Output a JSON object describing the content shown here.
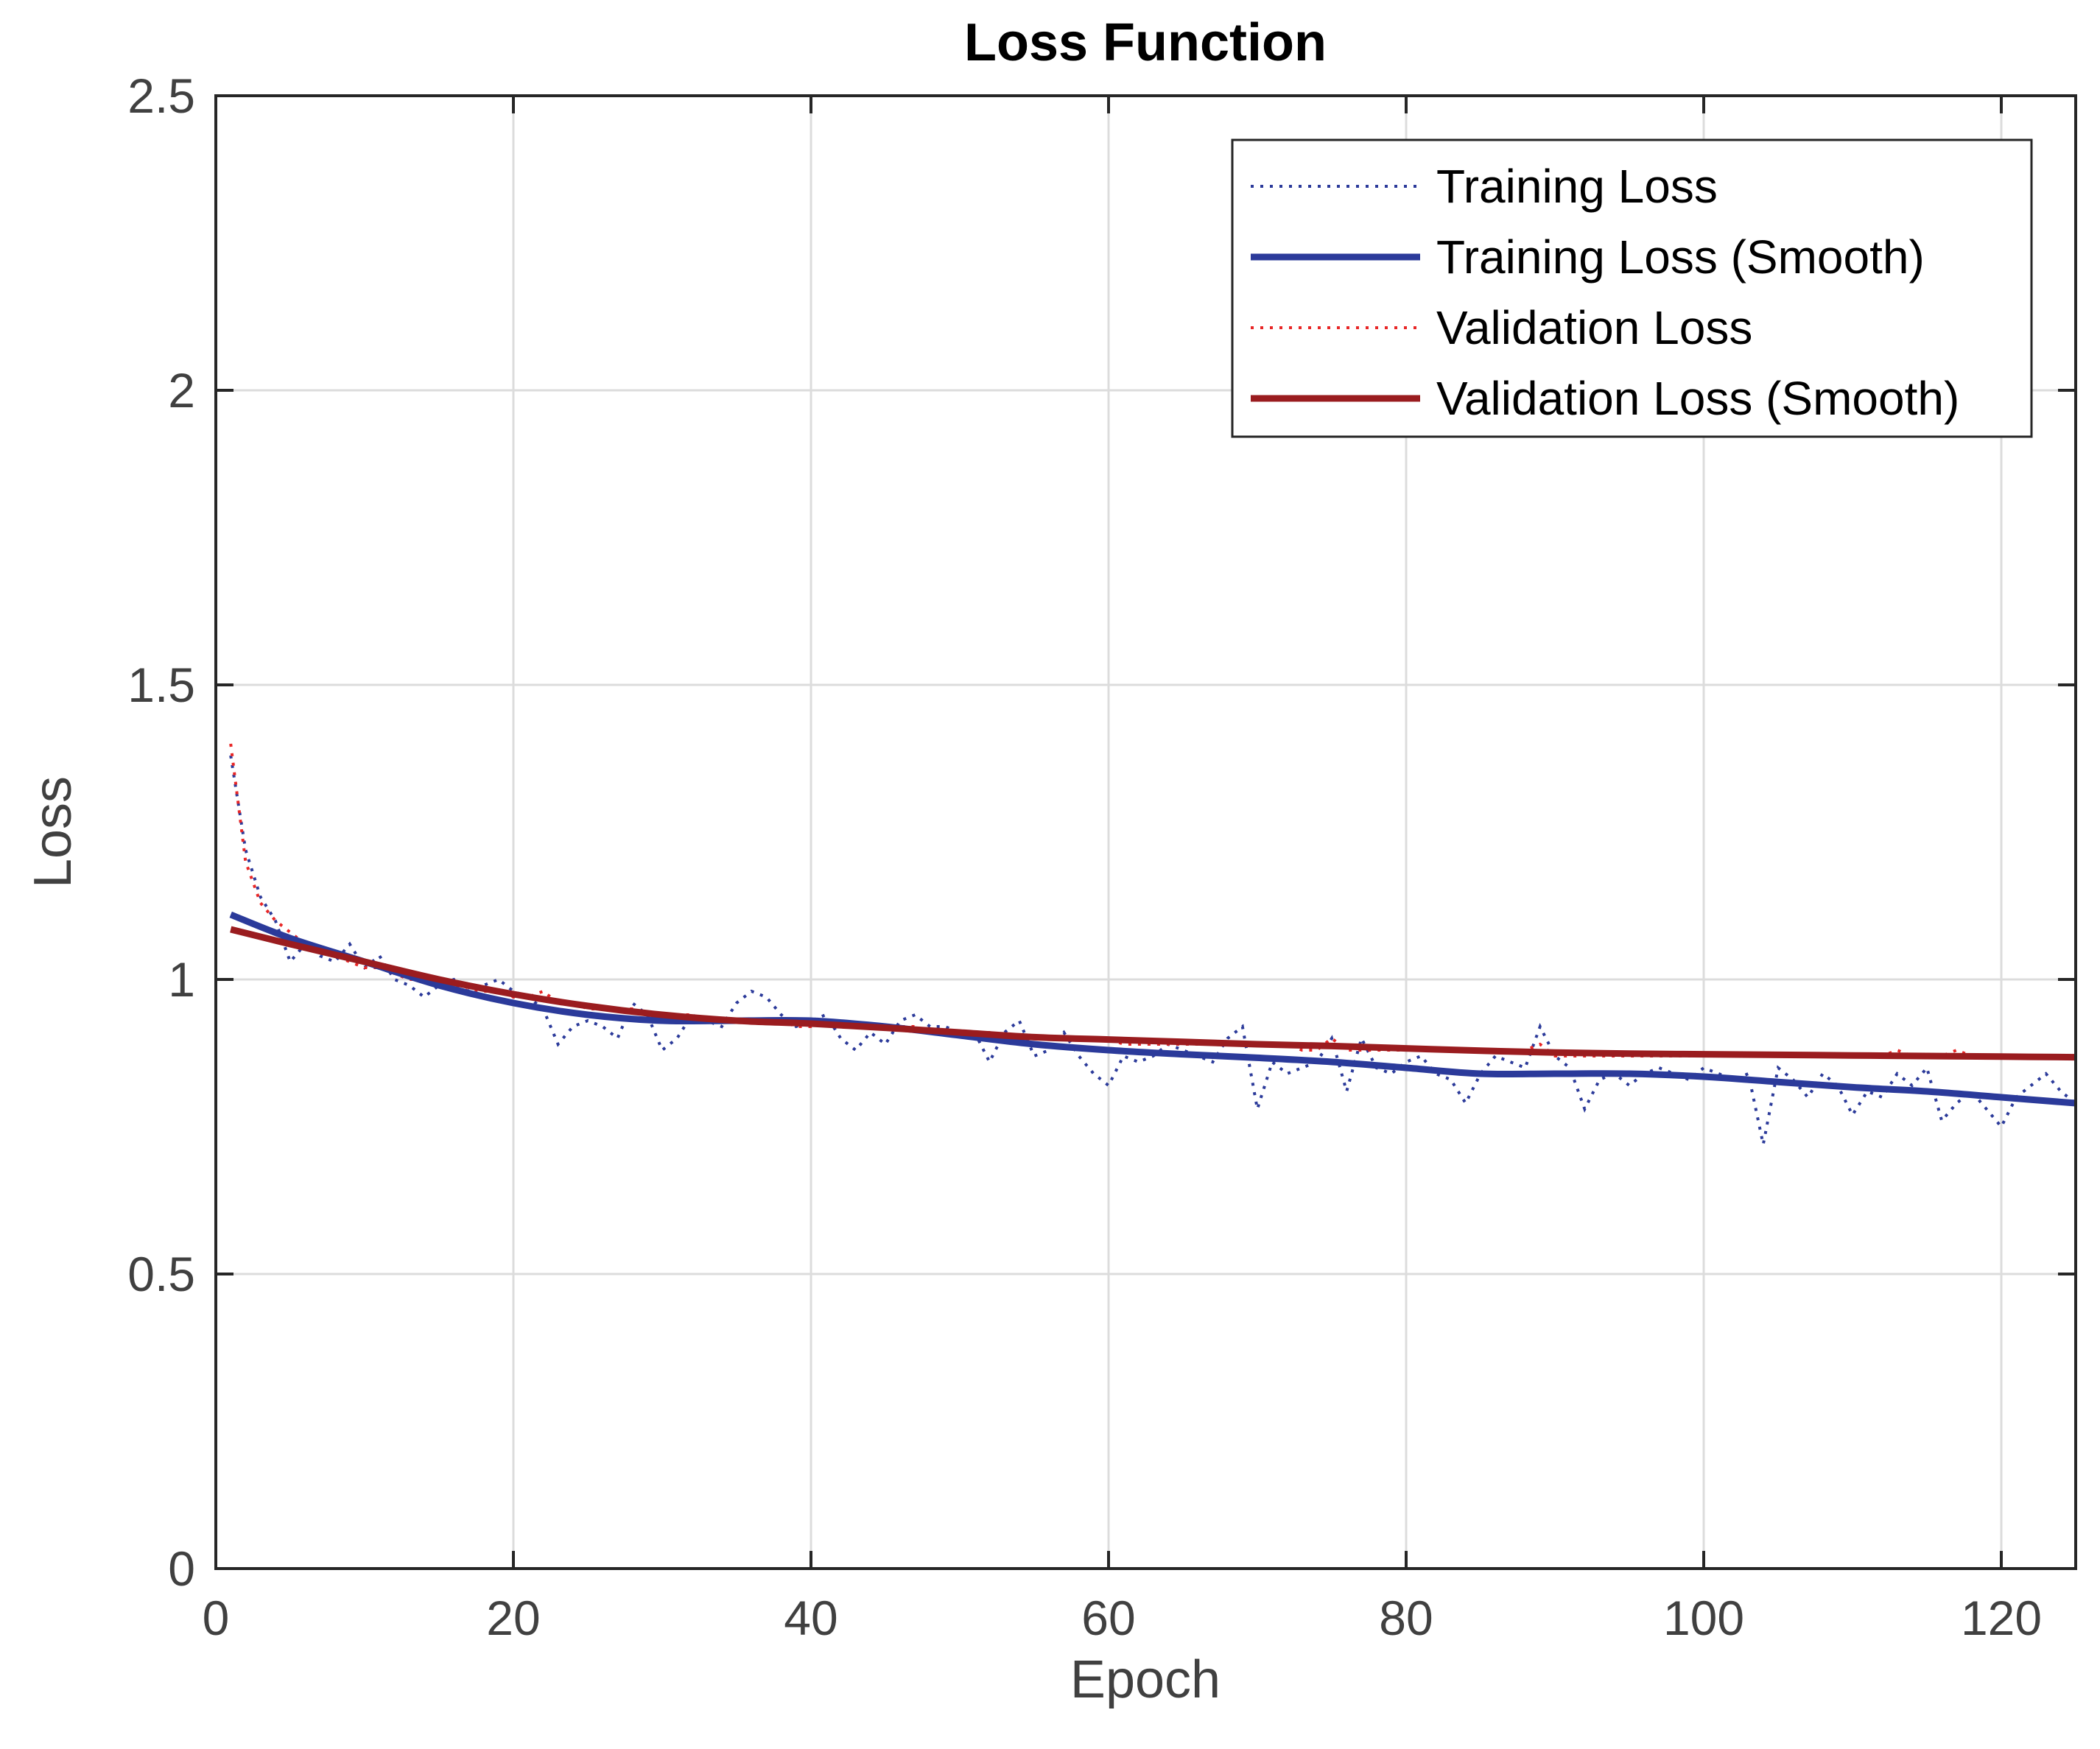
{
  "chart_data": {
    "type": "line",
    "title": "Loss Function",
    "xlabel": "Epoch",
    "ylabel": "Loss",
    "xlim": [
      0,
      125
    ],
    "ylim": [
      0,
      2.5
    ],
    "xticks": [
      0,
      20,
      40,
      60,
      80,
      100,
      120
    ],
    "yticks": [
      0,
      0.5,
      1,
      1.5,
      2,
      2.5
    ],
    "xtick_labels": [
      "0",
      "20",
      "40",
      "60",
      "80",
      "100",
      "120"
    ],
    "ytick_labels": [
      "0",
      "0.5",
      "1",
      "1.5",
      "2",
      "2.5"
    ],
    "grid": true,
    "legend_position": "top-right",
    "series": [
      {
        "name": "Training Loss",
        "style": "dotted",
        "color": "#2b3a9a",
        "x": [
          1,
          2,
          3,
          4,
          5,
          6,
          7,
          8,
          9,
          10,
          11,
          12,
          13,
          14,
          15,
          16,
          17,
          18,
          19,
          20,
          21,
          22,
          23,
          24,
          25,
          26,
          27,
          28,
          29,
          30,
          31,
          32,
          33,
          34,
          35,
          36,
          37,
          38,
          39,
          40,
          41,
          42,
          43,
          44,
          45,
          46,
          47,
          48,
          49,
          50,
          51,
          52,
          53,
          54,
          55,
          56,
          57,
          58,
          59,
          60,
          61,
          62,
          63,
          64,
          65,
          66,
          67,
          68,
          69,
          70,
          71,
          72,
          73,
          74,
          75,
          76,
          77,
          78,
          79,
          80,
          81,
          82,
          83,
          84,
          85,
          86,
          87,
          88,
          89,
          90,
          91,
          92,
          93,
          94,
          95,
          96,
          97,
          98,
          99,
          100,
          101,
          102,
          103,
          104,
          105,
          106,
          107,
          108,
          109,
          110,
          111,
          112,
          113,
          114,
          115,
          116,
          117,
          118,
          119,
          120,
          121,
          122,
          123,
          124,
          125
        ],
        "y": [
          1.38,
          1.22,
          1.14,
          1.1,
          1.03,
          1.06,
          1.04,
          1.03,
          1.06,
          1.02,
          1.04,
          1.0,
          0.99,
          0.97,
          0.99,
          1.0,
          0.98,
          0.99,
          1.0,
          0.98,
          0.97,
          0.95,
          0.89,
          0.92,
          0.93,
          0.92,
          0.9,
          0.96,
          0.94,
          0.88,
          0.9,
          0.94,
          0.93,
          0.92,
          0.96,
          0.98,
          0.97,
          0.94,
          0.92,
          0.93,
          0.94,
          0.9,
          0.88,
          0.91,
          0.89,
          0.93,
          0.94,
          0.92,
          0.92,
          0.91,
          0.91,
          0.86,
          0.91,
          0.93,
          0.87,
          0.88,
          0.91,
          0.87,
          0.84,
          0.82,
          0.87,
          0.86,
          0.87,
          0.89,
          0.88,
          0.87,
          0.86,
          0.9,
          0.92,
          0.78,
          0.86,
          0.84,
          0.85,
          0.86,
          0.9,
          0.81,
          0.9,
          0.85,
          0.84,
          0.86,
          0.87,
          0.84,
          0.83,
          0.79,
          0.84,
          0.87,
          0.86,
          0.85,
          0.92,
          0.87,
          0.85,
          0.78,
          0.83,
          0.84,
          0.82,
          0.84,
          0.85,
          0.84,
          0.83,
          0.85,
          0.84,
          0.83,
          0.84,
          0.72,
          0.85,
          0.83,
          0.8,
          0.84,
          0.82,
          0.77,
          0.81,
          0.8,
          0.84,
          0.82,
          0.85,
          0.76,
          0.79,
          0.81,
          0.78,
          0.75,
          0.8,
          0.82,
          0.84,
          0.81,
          0.79
        ]
      },
      {
        "name": "Training Loss (Smooth)",
        "style": "solid",
        "color": "#2b3a9a",
        "x": [
          1,
          5,
          10,
          15,
          20,
          25,
          30,
          35,
          40,
          45,
          50,
          55,
          60,
          65,
          70,
          75,
          80,
          85,
          90,
          95,
          100,
          105,
          110,
          115,
          120,
          125
        ],
        "y": [
          1.11,
          1.07,
          1.03,
          0.99,
          0.96,
          0.94,
          0.93,
          0.93,
          0.93,
          0.92,
          0.905,
          0.89,
          0.88,
          0.873,
          0.867,
          0.86,
          0.85,
          0.84,
          0.84,
          0.84,
          0.835,
          0.826,
          0.817,
          0.81,
          0.8,
          0.79
        ]
      },
      {
        "name": "Validation Loss",
        "style": "dotted",
        "color": "#e82626",
        "x": [
          1,
          2,
          3,
          4,
          5,
          6,
          7,
          8,
          9,
          10,
          11,
          12,
          13,
          14,
          15,
          16,
          17,
          18,
          19,
          20,
          21,
          22,
          23,
          24,
          25,
          26,
          27,
          28,
          29,
          30,
          31,
          32,
          33,
          34,
          35,
          36,
          37,
          38,
          39,
          40,
          41,
          42,
          43,
          44,
          45,
          46,
          47,
          48,
          49,
          50,
          51,
          52,
          53,
          54,
          55,
          56,
          57,
          58,
          59,
          60,
          61,
          62,
          63,
          64,
          65,
          66,
          67,
          68,
          69,
          70,
          71,
          72,
          73,
          74,
          75,
          76,
          77,
          78,
          79,
          80,
          81,
          82,
          83,
          84,
          85,
          86,
          87,
          88,
          89,
          90,
          91,
          92,
          93,
          94,
          95,
          96,
          97,
          98,
          99,
          100,
          101,
          102,
          103,
          104,
          105,
          106,
          107,
          108,
          109,
          110,
          111,
          112,
          113,
          114,
          115,
          116,
          117,
          118,
          119,
          120,
          121,
          122,
          123,
          124,
          125
        ],
        "y": [
          1.4,
          1.2,
          1.13,
          1.1,
          1.08,
          1.06,
          1.05,
          1.04,
          1.03,
          1.02,
          1.02,
          1.01,
          1.0,
          1.0,
          0.99,
          0.99,
          0.98,
          0.98,
          0.98,
          0.97,
          0.97,
          0.98,
          0.96,
          0.96,
          0.95,
          0.95,
          0.95,
          0.95,
          0.94,
          0.94,
          0.94,
          0.94,
          0.93,
          0.93,
          0.93,
          0.93,
          0.93,
          0.93,
          0.92,
          0.92,
          0.93,
          0.92,
          0.92,
          0.92,
          0.92,
          0.92,
          0.92,
          0.91,
          0.91,
          0.91,
          0.91,
          0.91,
          0.9,
          0.9,
          0.9,
          0.9,
          0.9,
          0.9,
          0.9,
          0.9,
          0.89,
          0.89,
          0.89,
          0.89,
          0.89,
          0.89,
          0.89,
          0.89,
          0.89,
          0.89,
          0.89,
          0.89,
          0.88,
          0.88,
          0.9,
          0.88,
          0.88,
          0.88,
          0.88,
          0.88,
          0.88,
          0.88,
          0.88,
          0.88,
          0.88,
          0.88,
          0.88,
          0.88,
          0.89,
          0.87,
          0.87,
          0.87,
          0.87,
          0.87,
          0.87,
          0.87,
          0.87,
          0.87,
          0.87,
          0.87,
          0.87,
          0.87,
          0.87,
          0.87,
          0.87,
          0.87,
          0.87,
          0.87,
          0.87,
          0.87,
          0.87,
          0.87,
          0.88,
          0.87,
          0.87,
          0.87,
          0.88,
          0.87,
          0.87,
          0.87,
          0.87,
          0.87,
          0.87,
          0.87,
          0.87
        ]
      },
      {
        "name": "Validation Loss (Smooth)",
        "style": "solid",
        "color": "#9a1c1f",
        "x": [
          1,
          5,
          10,
          15,
          20,
          25,
          30,
          35,
          40,
          45,
          50,
          55,
          60,
          65,
          70,
          75,
          80,
          85,
          90,
          95,
          100,
          105,
          110,
          115,
          120,
          125
        ],
        "y": [
          1.085,
          1.06,
          1.03,
          1.0,
          0.975,
          0.955,
          0.94,
          0.93,
          0.925,
          0.918,
          0.91,
          0.902,
          0.898,
          0.894,
          0.89,
          0.887,
          0.883,
          0.879,
          0.876,
          0.874,
          0.873,
          0.872,
          0.871,
          0.87,
          0.869,
          0.868
        ]
      }
    ]
  }
}
